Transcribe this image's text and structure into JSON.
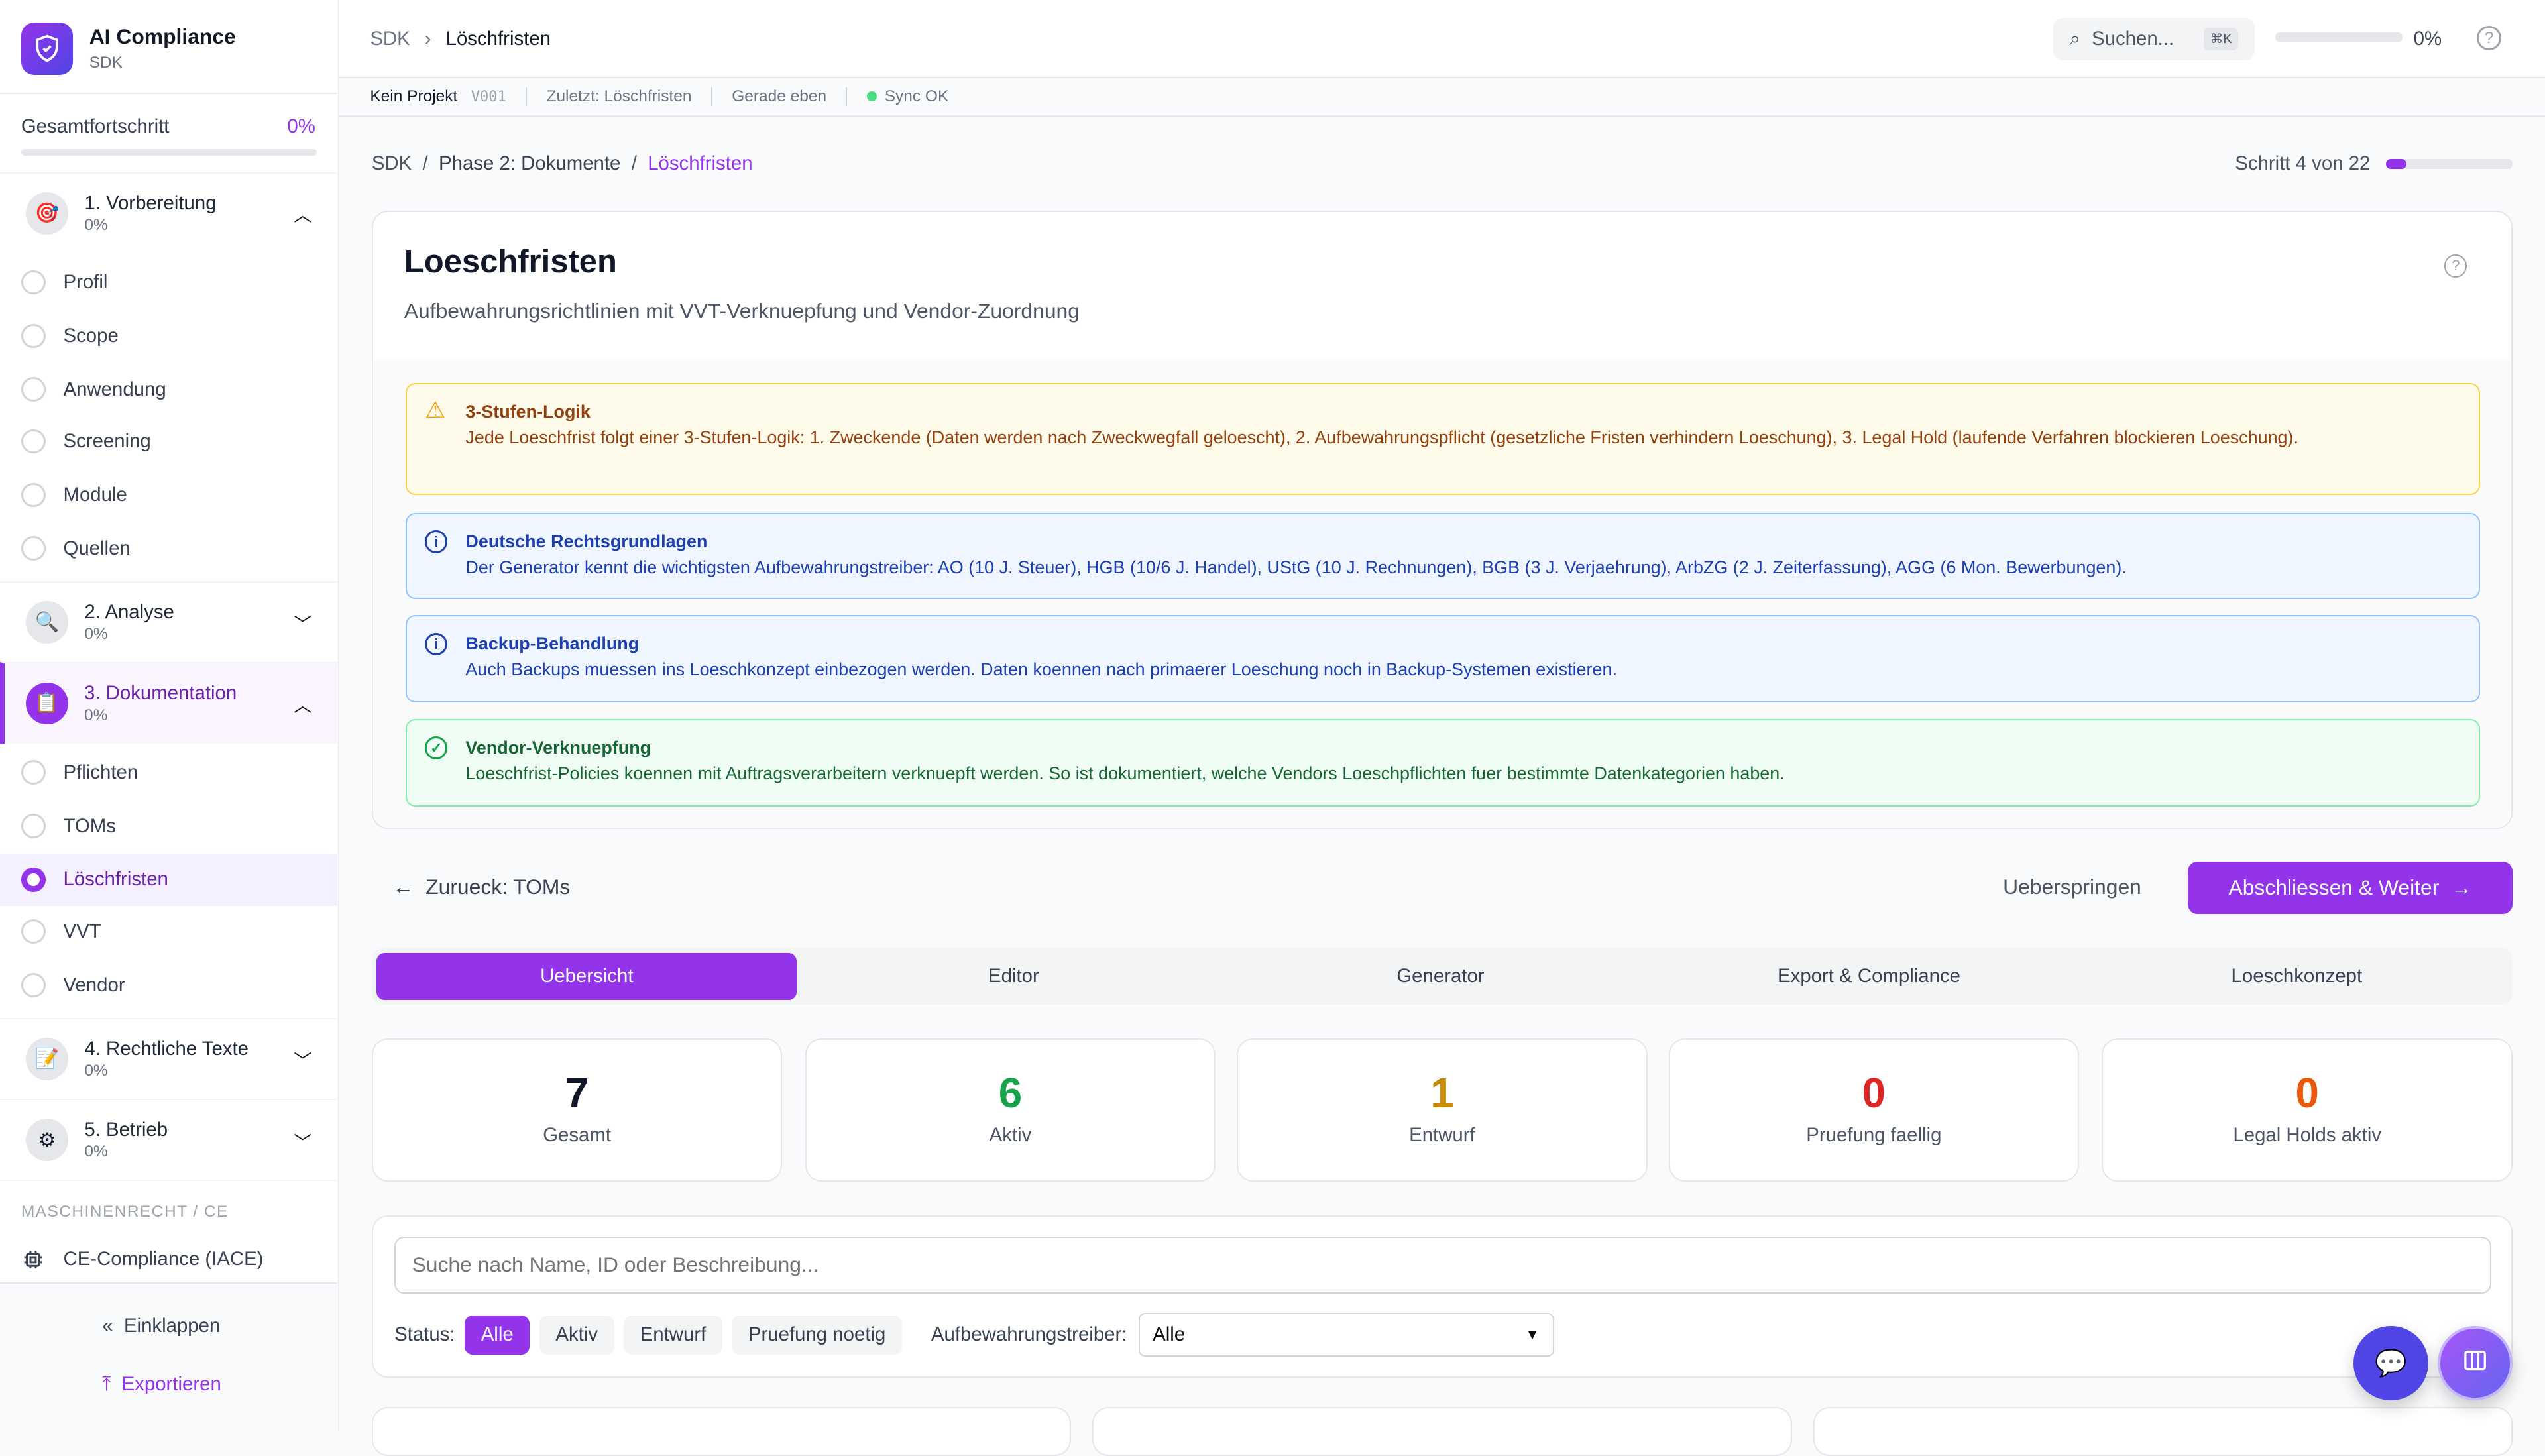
{
  "app": {
    "title": "AI Compliance",
    "subtitle": "SDK"
  },
  "sidebar": {
    "progress_label": "Gesamtfortschritt",
    "progress_value": "0%",
    "progress_fraction": 0,
    "sections": [
      {
        "title": "1. Vorbereitung",
        "progress": "0%",
        "icon": "target-icon",
        "expanded": true,
        "items": [
          "Profil",
          "Scope",
          "Anwendung",
          "Screening",
          "Module",
          "Quellen"
        ]
      },
      {
        "title": "2. Analyse",
        "progress": "0%",
        "icon": "magnifier-icon",
        "expanded": false
      },
      {
        "title": "3. Dokumentation",
        "progress": "0%",
        "icon": "clipboard-icon",
        "expanded": true,
        "items": [
          "Pflichten",
          "TOMs",
          "Löschfristen",
          "VVT",
          "Vendor"
        ],
        "active_item": "Löschfristen"
      },
      {
        "title": "4. Rechtliche Texte",
        "progress": "0%",
        "icon": "pencil-icon",
        "expanded": false
      },
      {
        "title": "5. Betrieb",
        "progress": "0%",
        "icon": "gear-icon",
        "expanded": false
      }
    ],
    "group_label": "MASCHINENRECHT / CE",
    "ce_item": "CE-Compliance (IACE)",
    "collapse_label": "Einklappen",
    "export_label": "Exportieren"
  },
  "header": {
    "breadcrumb": [
      "SDK",
      "Löschfristen"
    ],
    "search_placeholder": "Suchen...",
    "shortcut": "⌘K",
    "progress": "0%",
    "progress_fraction": 0
  },
  "status_bar": {
    "project": "Kein Projekt",
    "version": "V001",
    "last": "Zuletzt: Löschfristen",
    "time": "Gerade eben",
    "sync": "Sync OK"
  },
  "page": {
    "breadcrumb": [
      "SDK",
      "Phase 2: Dokumente",
      "Löschfristen"
    ],
    "step": "Schritt 4 von 22",
    "step_fraction": 0.045,
    "title": "Loeschfristen",
    "subtitle": "Aufbewahrungsrichtlinien mit VVT-Verknuepfung und Vendor-Zuordnung",
    "alerts": [
      {
        "title": "3-Stufen-Logik",
        "text": "Jede Loeschfrist folgt einer 3-Stufen-Logik: 1. Zweckende (Daten werden nach Zweckwegfall geloescht), 2. Aufbewahrungspflicht (gesetzliche Fristen verhindern Loeschung), 3. Legal Hold (laufende Verfahren blockieren Loeschung)."
      },
      {
        "title": "Deutsche Rechtsgrundlagen",
        "text": "Der Generator kennt die wichtigsten Aufbewahrungstreiber: AO (10 J. Steuer), HGB (10/6 J. Handel), UStG (10 J. Rechnungen), BGB (3 J. Verjaehrung), ArbZG (2 J. Zeiterfassung), AGG (6 Mon. Bewerbungen)."
      },
      {
        "title": "Backup-Behandlung",
        "text": "Auch Backups muessen ins Loeschkonzept einbezogen werden. Daten koennen nach primaerer Loeschung noch in Backup-Systemen existieren."
      },
      {
        "title": "Vendor-Verknuepfung",
        "text": "Loeschfrist-Policies koennen mit Auftragsverarbeitern verknuepft werden. So ist dokumentiert, welche Vendors Loeschpflichten fuer bestimmte Datenkategorien haben."
      }
    ],
    "back": "Zurueck: TOMs",
    "skip": "Ueberspringen",
    "next": "Abschliessen & Weiter",
    "tabs": [
      "Uebersicht",
      "Editor",
      "Generator",
      "Export & Compliance",
      "Loeschkonzept"
    ],
    "active_tab": "Uebersicht",
    "stats": [
      {
        "value": "7",
        "label": "Gesamt",
        "color": "#111827"
      },
      {
        "value": "6",
        "label": "Aktiv",
        "color": "#16a34a"
      },
      {
        "value": "1",
        "label": "Entwurf",
        "color": "#ca8a04"
      },
      {
        "value": "0",
        "label": "Pruefung faellig",
        "color": "#dc2626"
      },
      {
        "value": "0",
        "label": "Legal Holds aktiv",
        "color": "#ea580c"
      }
    ],
    "search_placeholder": "Suche nach Name, ID oder Beschreibung...",
    "status_label": "Status:",
    "status_filters": [
      "Alle",
      "Aktiv",
      "Entwurf",
      "Pruefung noetig"
    ],
    "active_status": "Alle",
    "driver_label": "Aufbewahrungstreiber:",
    "driver_value": "Alle"
  },
  "colors": {
    "accent": "#9333ea"
  }
}
